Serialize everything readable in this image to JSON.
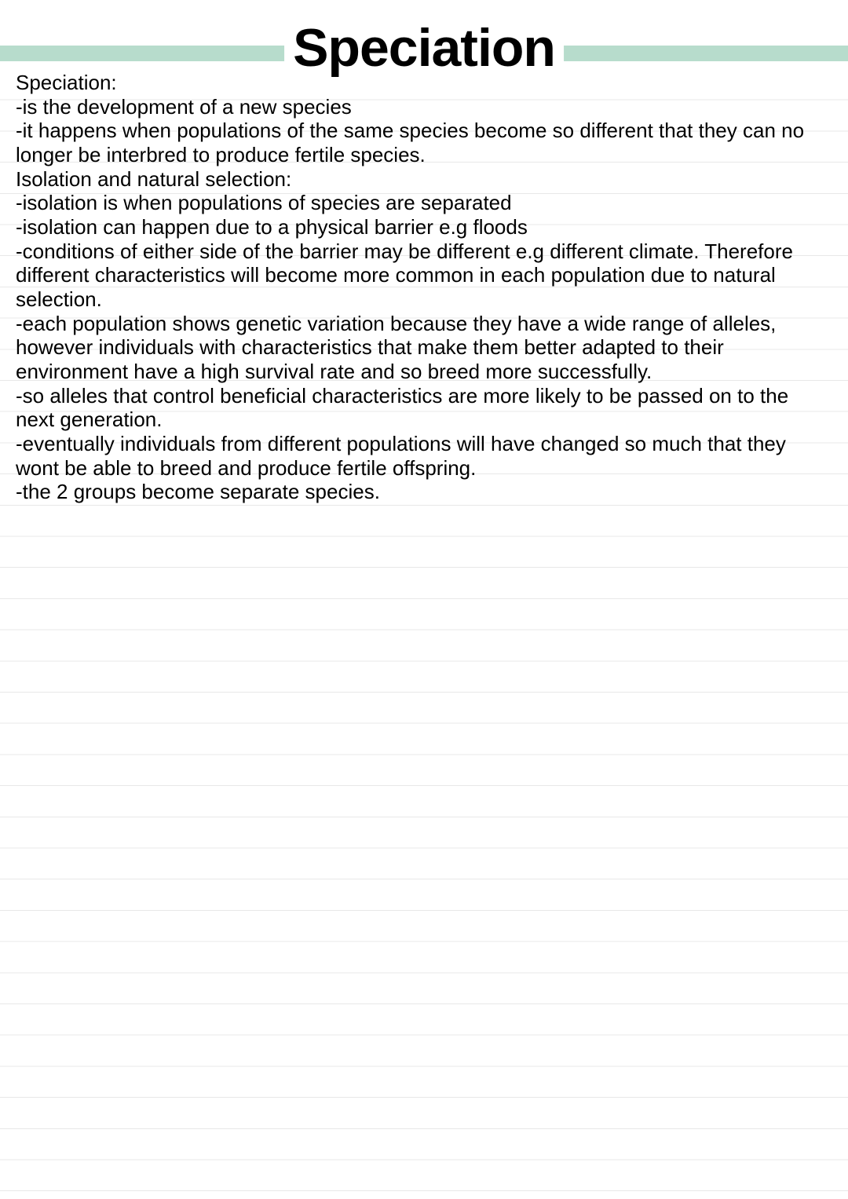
{
  "document": {
    "title": "Speciation",
    "accent_color": "#b7dccc",
    "rule_color": "#e8e8e8",
    "text_color": "#000000",
    "background_color": "#ffffff",
    "title_fontsize": 68,
    "body_fontsize": 26,
    "lines": [
      "Speciation:",
      "-is the development of a new species",
      "-it happens when populations of the same species become so different that they can no longer be interbred to produce fertile species.",
      "Isolation and natural selection:",
      "-isolation is when populations of species are separated",
      "-isolation can happen due to a physical barrier e.g floods",
      "-conditions of either side of the barrier may be different e.g different climate. Therefore different characteristics will become more common in each population due to natural selection.",
      "-each population shows genetic variation because they have a wide range of alleles, however individuals with characteristics that make them better adapted to their environment have a high survival rate and so breed more successfully.",
      "-so alleles that control beneficial characteristics are more likely to be passed on to the next generation.",
      "-eventually individuals from different populations will have changed so much that they wont be able to breed and produce fertile offspring.",
      "-the 2 groups become separate species."
    ]
  }
}
